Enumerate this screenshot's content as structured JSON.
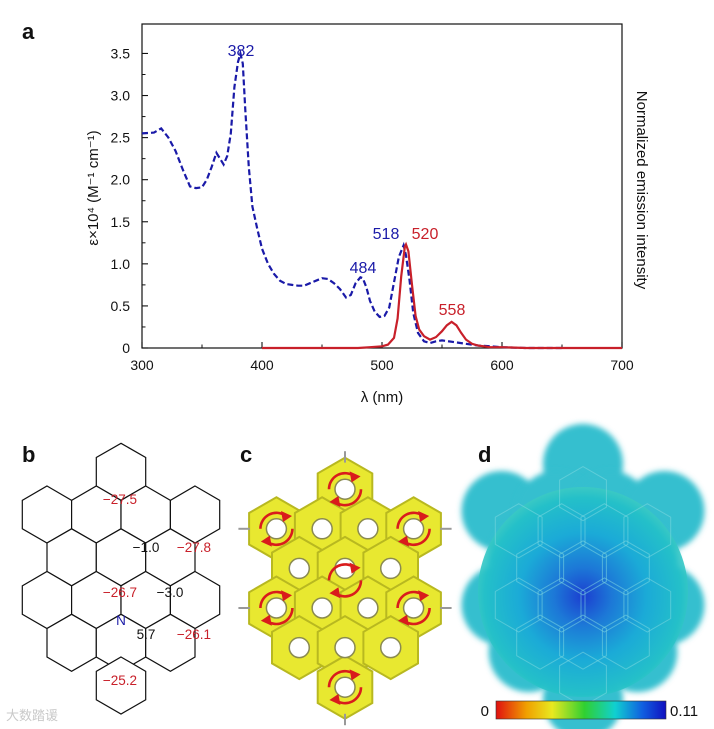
{
  "panel_labels": {
    "a": "a",
    "b": "b",
    "c": "c",
    "d": "d"
  },
  "chart_data": {
    "type": "line",
    "xlabel": "λ (nm)",
    "ylabel": "ε×10⁴ (M⁻¹ cm⁻¹)",
    "y2label": "Normalized emission intensity",
    "xlim": [
      300,
      700
    ],
    "ylim": [
      0,
      3.85
    ],
    "xticks": [
      "300",
      "400",
      "500",
      "600",
      "700"
    ],
    "yticks": [
      "0",
      "0.5",
      "1.0",
      "1.5",
      "2.0",
      "2.5",
      "3.0",
      "3.5"
    ],
    "colors": {
      "absorption": "#1a1aa8",
      "emission": "#c8202a"
    },
    "series": [
      {
        "name": "absorption",
        "style": "dashed",
        "x": [
          300,
          310,
          316,
          322,
          328,
          334,
          340,
          345,
          350,
          354,
          358,
          362,
          365,
          368,
          371,
          374,
          377,
          380,
          382,
          384,
          386,
          389,
          392,
          396,
          400,
          405,
          410,
          415,
          420,
          425,
          430,
          435,
          440,
          445,
          450,
          455,
          460,
          465,
          470,
          474,
          478,
          482,
          484,
          487,
          490,
          494,
          498,
          502,
          506,
          510,
          514,
          518,
          520,
          523,
          526,
          530,
          535,
          540,
          545,
          550,
          560,
          570,
          580,
          590,
          600,
          620,
          650
        ],
        "y": [
          2.55,
          2.56,
          2.61,
          2.5,
          2.34,
          2.12,
          1.92,
          1.9,
          1.91,
          2.0,
          2.15,
          2.32,
          2.25,
          2.18,
          2.28,
          2.55,
          3.1,
          3.4,
          3.5,
          3.38,
          2.85,
          2.15,
          1.68,
          1.42,
          1.18,
          1.0,
          0.88,
          0.8,
          0.76,
          0.75,
          0.74,
          0.74,
          0.77,
          0.8,
          0.83,
          0.82,
          0.77,
          0.7,
          0.6,
          0.63,
          0.77,
          0.84,
          0.83,
          0.72,
          0.56,
          0.43,
          0.37,
          0.38,
          0.48,
          0.78,
          1.08,
          1.22,
          1.1,
          0.8,
          0.42,
          0.18,
          0.08,
          0.06,
          0.08,
          0.09,
          0.07,
          0.05,
          0.03,
          0.02,
          0.01,
          0.0,
          0.0
        ]
      },
      {
        "name": "emission",
        "style": "solid",
        "x": [
          400,
          450,
          480,
          490,
          500,
          505,
          510,
          513,
          516,
          519,
          520,
          522,
          525,
          528,
          531,
          535,
          540,
          545,
          550,
          554,
          558,
          562,
          566,
          570,
          575,
          580,
          590,
          600,
          620,
          650,
          700
        ],
        "y": [
          0.0,
          0.0,
          0.0,
          0.01,
          0.02,
          0.04,
          0.12,
          0.35,
          0.85,
          1.2,
          1.23,
          1.15,
          0.75,
          0.38,
          0.22,
          0.14,
          0.1,
          0.13,
          0.2,
          0.27,
          0.31,
          0.27,
          0.18,
          0.1,
          0.05,
          0.03,
          0.01,
          0.01,
          0.0,
          0.0,
          0.0
        ]
      }
    ],
    "annotations": [
      {
        "text": "382",
        "series": "absorption"
      },
      {
        "text": "484",
        "series": "absorption"
      },
      {
        "text": "518",
        "series": "absorption"
      },
      {
        "text": "520",
        "series": "emission"
      },
      {
        "text": "558",
        "series": "emission"
      }
    ]
  },
  "panel_b": {
    "atom_label": "N",
    "values": [
      {
        "text": "−27.5",
        "color": "#c8202a"
      },
      {
        "text": "−1.0",
        "color": "#111111"
      },
      {
        "text": "−27.8",
        "color": "#c8202a"
      },
      {
        "text": "−26.7",
        "color": "#c8202a"
      },
      {
        "text": "−3.0",
        "color": "#111111"
      },
      {
        "text": "5.7",
        "color": "#111111"
      },
      {
        "text": "−26.1",
        "color": "#c8202a"
      },
      {
        "text": "−25.2",
        "color": "#c8202a"
      }
    ]
  },
  "panel_c": {
    "arrow_color": "#d91c1c",
    "density_color": "#e8e830"
  },
  "panel_d": {
    "colorbar_min": "0",
    "colorbar_max": "0.11",
    "colorbar_colors": [
      "#e01010",
      "#f0a000",
      "#e8e820",
      "#30d030",
      "#10d0d0",
      "#1060e0",
      "#1010c0"
    ]
  },
  "watermark": "大数踏谖"
}
